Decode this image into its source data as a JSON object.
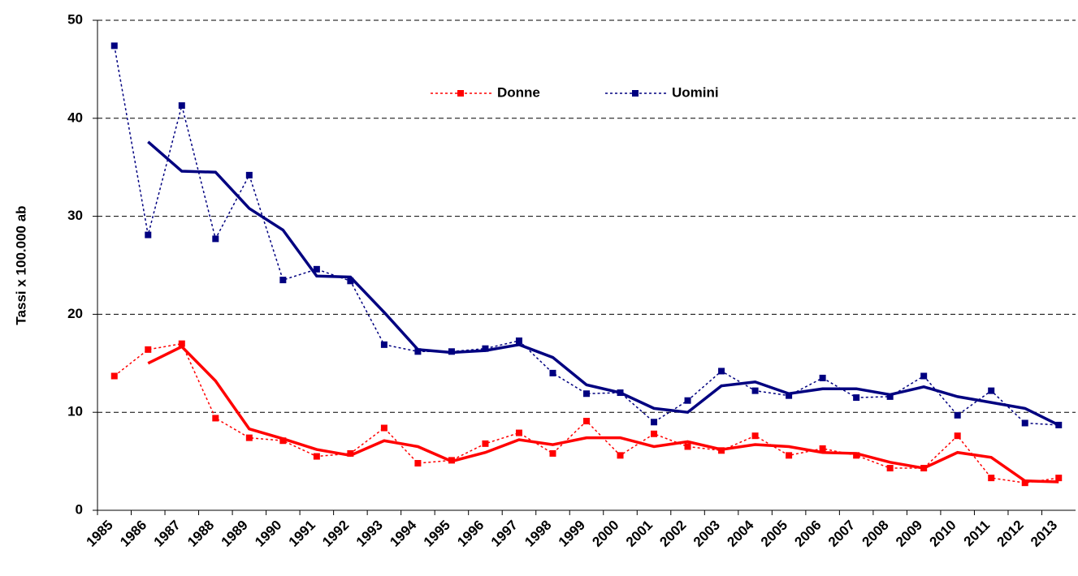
{
  "chart_data": {
    "type": "line",
    "y_label": "Tassi x 100.000 ab",
    "categories": [
      "1985",
      "1986",
      "1987",
      "1988",
      "1989",
      "1990",
      "1991",
      "1992",
      "1993",
      "1994",
      "1995",
      "1996",
      "1997",
      "1998",
      "1999",
      "2000",
      "2001",
      "2002",
      "2003",
      "2004",
      "2005",
      "2006",
      "2007",
      "2008",
      "2009",
      "2010",
      "2011",
      "2012",
      "2013"
    ],
    "series": [
      {
        "name": "Donne",
        "color": "#ff0000",
        "dash": "dotted",
        "markers": true,
        "values": [
          13.7,
          16.4,
          17.0,
          9.4,
          7.4,
          7.1,
          5.5,
          5.8,
          8.4,
          4.8,
          5.1,
          6.8,
          7.9,
          5.8,
          9.1,
          5.6,
          7.8,
          6.5,
          6.1,
          7.6,
          5.6,
          6.3,
          5.6,
          4.3,
          4.3,
          7.6,
          3.3,
          2.8,
          3.3
        ]
      },
      {
        "name": "Uomini",
        "color": "#000080",
        "dash": "dotted",
        "markers": true,
        "values": [
          47.4,
          28.1,
          41.3,
          27.7,
          34.2,
          23.5,
          24.6,
          23.4,
          16.9,
          16.2,
          16.2,
          16.5,
          17.3,
          14.0,
          11.9,
          12.0,
          9.0,
          11.2,
          14.2,
          12.2,
          11.7,
          13.5,
          11.5,
          11.6,
          13.7,
          9.7,
          12.2,
          8.9,
          8.7
        ]
      },
      {
        "color": "#ff0000",
        "dash": "solid",
        "markers": false,
        "values": [
          null,
          15.0,
          16.7,
          13.2,
          8.3,
          7.3,
          6.2,
          5.6,
          7.1,
          6.5,
          5.0,
          5.9,
          7.2,
          6.7,
          7.4,
          7.4,
          6.5,
          7.0,
          6.2,
          6.7,
          6.5,
          5.9,
          5.8,
          4.9,
          4.3,
          5.9,
          5.4,
          3.0,
          2.9
        ]
      },
      {
        "color": "#000080",
        "dash": "solid",
        "markers": false,
        "values": [
          null,
          37.6,
          34.6,
          34.5,
          30.8,
          28.6,
          23.9,
          23.8,
          20.2,
          16.4,
          16.1,
          16.3,
          16.9,
          15.6,
          12.8,
          12.0,
          10.4,
          10.0,
          12.7,
          13.1,
          11.9,
          12.4,
          12.4,
          11.8,
          12.6,
          11.6,
          11.0,
          10.4,
          8.7
        ]
      }
    ],
    "ylim": [
      0,
      50
    ],
    "yticks": [
      0,
      10,
      20,
      30,
      40,
      50
    ],
    "grid": true,
    "legend": "top"
  }
}
